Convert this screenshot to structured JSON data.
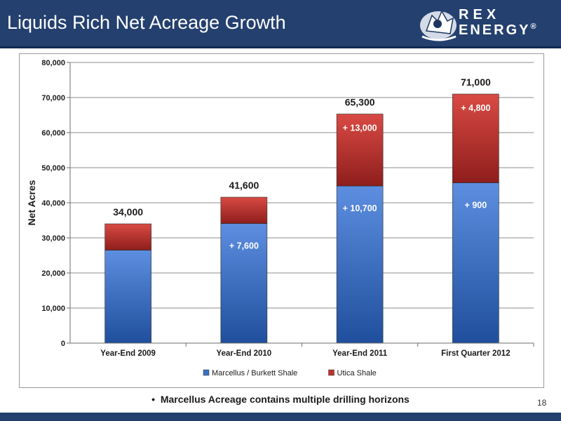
{
  "slide": {
    "title": "Liquids Rich Net Acreage Growth",
    "logo": {
      "word1": "REX",
      "word2": "ENERGY",
      "mark": "®"
    },
    "bullet": "Marcellus Acreage contains multiple drilling horizons",
    "page_number": "18"
  },
  "chart_data": {
    "type": "bar",
    "stacked": true,
    "categories": [
      "Year-End 2009",
      "Year-End 2010",
      "Year-End 2011",
      "First Quarter 2012"
    ],
    "series": [
      {
        "name": "Marcellus / Burkett Shale",
        "values": [
          26500,
          34100,
          44800,
          45700
        ],
        "color": "#3a6fc4"
      },
      {
        "name": "Utica Shale",
        "values": [
          7500,
          7500,
          20500,
          25300
        ],
        "color": "#c0302d"
      }
    ],
    "totals": [
      "34,000",
      "41,600",
      "65,300",
      "71,000"
    ],
    "segment_labels": {
      "Marcellus / Burkett Shale": [
        "",
        "+ 7,600",
        "+ 10,700",
        "+ 900"
      ],
      "Utica Shale": [
        "",
        "",
        "+ 13,000",
        "+ 4,800"
      ]
    },
    "ylabel": "Net Acres",
    "xlabel": "",
    "ylim": [
      0,
      80000
    ],
    "yticks": [
      0,
      10000,
      20000,
      30000,
      40000,
      50000,
      60000,
      70000,
      80000
    ],
    "ytick_labels": [
      "0",
      "10,000",
      "20,000",
      "30,000",
      "40,000",
      "50,000",
      "60,000",
      "70,000",
      "80,000"
    ],
    "legend": {
      "position": "bottom"
    }
  }
}
